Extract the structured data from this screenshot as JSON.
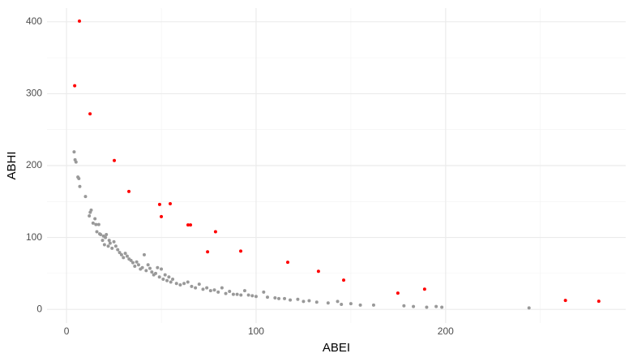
{
  "chart_data": {
    "type": "scatter",
    "x_label": "ABEI",
    "y_label": "ABHI",
    "xlim": [
      -10.3,
      295
    ],
    "ylim": [
      -19,
      419
    ],
    "xticks": [
      0,
      100,
      200
    ],
    "yticks": [
      0,
      100,
      200,
      300,
      400
    ],
    "xminorticks": [
      50,
      150,
      250
    ],
    "yminorticks": [
      50,
      150,
      250,
      350
    ],
    "grid": true,
    "series": [
      {
        "color": "#999999",
        "x": [
          4,
          4.5,
          5,
          6,
          6.5,
          7,
          10,
          12,
          12.5,
          13,
          14,
          15,
          15.5,
          16,
          17,
          17.5,
          18,
          19,
          19.5,
          20,
          20.5,
          21,
          22,
          22.5,
          23,
          24,
          25,
          26,
          27,
          28,
          29,
          30,
          31,
          32,
          33,
          34,
          35,
          36,
          37,
          38,
          39,
          40,
          41,
          42,
          43,
          44,
          45,
          46,
          47,
          48,
          49,
          50,
          51,
          52,
          53,
          54,
          55,
          56,
          58,
          60,
          62,
          64,
          66,
          68,
          70,
          72,
          74,
          76,
          78,
          80,
          82,
          84,
          86,
          88,
          90,
          92,
          94,
          96,
          98,
          100,
          104,
          106,
          110,
          112,
          115,
          118,
          122,
          125,
          128,
          132,
          138,
          143,
          145,
          150,
          155,
          162,
          178,
          183,
          190,
          195,
          198,
          244
        ],
        "y": [
          219,
          208,
          205,
          184,
          182,
          171,
          157,
          130,
          135,
          138,
          120,
          126,
          118,
          108,
          118,
          105,
          104,
          96,
          102,
          90,
          100,
          104,
          88,
          96,
          92,
          85,
          94,
          88,
          83,
          79,
          76,
          72,
          78,
          74,
          70,
          68,
          65,
          60,
          66,
          62,
          56,
          58,
          76,
          54,
          62,
          57,
          52,
          48,
          50,
          58,
          45,
          56,
          42,
          48,
          40,
          45,
          38,
          42,
          36,
          34,
          36,
          38,
          32,
          30,
          35,
          28,
          30,
          26,
          27,
          24,
          30,
          22,
          25,
          21,
          21,
          20,
          26,
          20,
          19,
          18,
          24,
          17,
          16,
          15,
          15,
          13,
          14,
          11,
          12,
          10,
          9,
          11,
          7,
          8,
          6,
          6,
          5,
          4,
          3,
          4,
          3,
          2
        ]
      },
      {
        "color": "#ff0000",
        "x": [
          6.8,
          4.3,
          12.4,
          25.2,
          32.9,
          49.1,
          54.7,
          50,
          64.1,
          65.4,
          78.6,
          74.4,
          91.9,
          116.7,
          132.9,
          146.2,
          174.8,
          188.9,
          263.2,
          280.8
        ],
        "y": [
          401,
          311,
          272,
          207,
          164,
          146,
          147,
          129,
          117.5,
          117.5,
          108,
          80,
          81,
          65.5,
          53,
          40.7,
          22.6,
          28.2,
          12.4,
          11.3
        ]
      }
    ]
  }
}
